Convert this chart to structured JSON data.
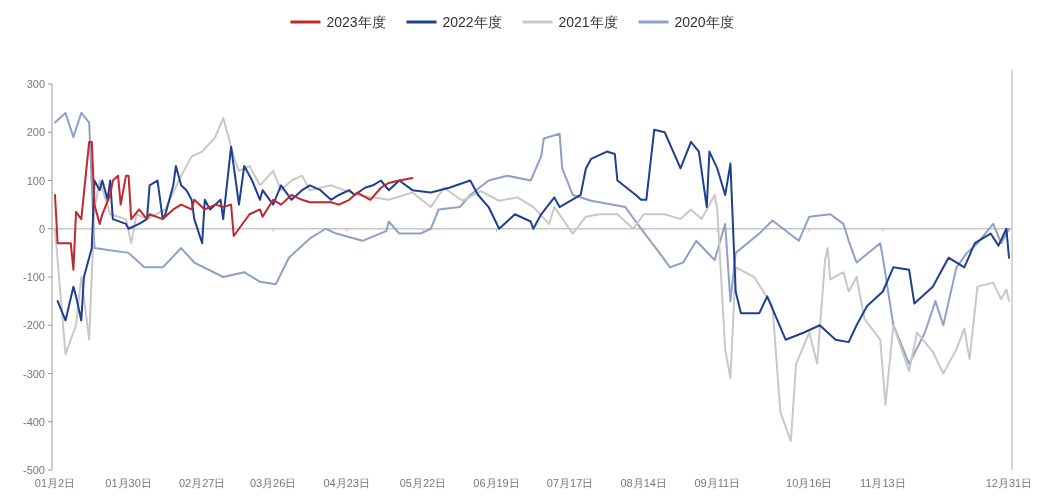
{
  "chart_data": {
    "type": "line",
    "legend": "top",
    "grid": false,
    "marker": "none",
    "line_style": "solid",
    "xlim": [
      "--01-02",
      "--12-31"
    ],
    "xticks": [
      {
        "value": "--01-02",
        "label": "01月2日"
      },
      {
        "value": "--01-30",
        "label": "01月30日"
      },
      {
        "value": "--02-27",
        "label": "02月27日"
      },
      {
        "value": "--03-26",
        "label": "03月26日"
      },
      {
        "value": "--04-23",
        "label": "04月23日"
      },
      {
        "value": "--05-22",
        "label": "05月22日"
      },
      {
        "value": "--06-19",
        "label": "06月19日"
      },
      {
        "value": "--07-17",
        "label": "07月17日"
      },
      {
        "value": "--08-14",
        "label": "08月14日"
      },
      {
        "value": "--09-11",
        "label": "09月11日"
      },
      {
        "value": "--10-16",
        "label": "10月16日"
      },
      {
        "value": "--11-13",
        "label": "11月13日"
      },
      {
        "value": "--12-31",
        "label": "12月31日"
      }
    ],
    "ylim": [
      -500,
      300
    ],
    "yticks": [
      -500,
      -400,
      -300,
      -200,
      -100,
      0,
      100,
      200,
      300
    ],
    "ref_lines": [
      {
        "axis": "y",
        "value": 0,
        "color": "#c8c8c8"
      }
    ],
    "series": [
      {
        "name": "2023年度",
        "color": "#c0282d",
        "x": [
          "--01-02",
          "--01-03",
          "--01-08",
          "--01-09",
          "--01-10",
          "--01-12",
          "--01-15",
          "--01-16",
          "--01-17",
          "--01-19",
          "--01-20",
          "--01-23",
          "--01-24",
          "--01-26",
          "--01-27",
          "--01-29",
          "--01-30",
          "--01-31",
          "--02-03",
          "--02-06",
          "--02-07",
          "--02-12",
          "--02-16",
          "--02-19",
          "--02-23",
          "--02-24",
          "--02-28",
          "--03-04",
          "--03-07",
          "--03-10",
          "--03-11",
          "--03-13",
          "--03-17",
          "--03-21",
          "--03-22",
          "--03-26",
          "--03-29",
          "--04-02",
          "--04-06",
          "--04-09",
          "--04-17",
          "--04-20",
          "--04-24",
          "--04-27",
          "--05-02",
          "--05-06",
          "--05-09",
          "--05-13",
          "--05-18"
        ],
        "values": [
          70,
          -30,
          -30,
          -85,
          35,
          20,
          180,
          180,
          50,
          10,
          30,
          70,
          100,
          110,
          50,
          110,
          110,
          20,
          40,
          20,
          30,
          20,
          40,
          50,
          40,
          60,
          40,
          50,
          45,
          50,
          -15,
          0,
          30,
          40,
          25,
          60,
          50,
          70,
          60,
          55,
          55,
          50,
          60,
          75,
          60,
          85,
          95,
          100,
          105
        ]
      },
      {
        "name": "2022年度",
        "color": "#1f3f8f",
        "x": [
          "--01-03",
          "--01-06",
          "--01-09",
          "--01-10",
          "--01-12",
          "--01-13",
          "--01-15",
          "--01-16",
          "--01-17",
          "--01-19",
          "--01-20",
          "--01-22",
          "--01-23",
          "--01-24",
          "--01-29",
          "--01-30",
          "--02-03",
          "--02-06",
          "--02-07",
          "--02-10",
          "--02-12",
          "--02-13",
          "--02-16",
          "--02-17",
          "--02-19",
          "--02-21",
          "--02-23",
          "--02-24",
          "--02-27",
          "--02-28",
          "--03-02",
          "--03-06",
          "--03-07",
          "--03-10",
          "--03-11",
          "--03-13",
          "--03-15",
          "--03-18",
          "--03-21",
          "--03-22",
          "--03-26",
          "--03-29",
          "--04-02",
          "--04-06",
          "--04-09",
          "--04-13",
          "--04-17",
          "--04-20",
          "--04-24",
          "--04-26",
          "--04-30",
          "--05-03",
          "--05-06",
          "--05-09",
          "--05-13",
          "--05-18",
          "--05-25",
          "--06-01",
          "--06-09",
          "--06-12",
          "--06-16",
          "--06-20",
          "--06-26",
          "--07-02",
          "--07-03",
          "--07-06",
          "--07-11",
          "--07-13",
          "--07-21",
          "--07-23",
          "--07-25",
          "--07-31",
          "--08-03",
          "--08-04",
          "--08-11",
          "--08-13",
          "--08-15",
          "--08-18",
          "--08-22",
          "--08-28",
          "--09-01",
          "--09-04",
          "--09-07",
          "--09-08",
          "--09-11",
          "--09-14",
          "--09-16",
          "--09-18",
          "--09-20",
          "--09-27",
          "--09-30",
          "--10-07",
          "--10-14",
          "--10-20",
          "--10-26",
          "--10-31",
          "--11-03",
          "--11-07",
          "--11-13",
          "--11-17",
          "--11-23",
          "--11-25",
          "--12-02",
          "--12-08",
          "--12-14",
          "--12-18",
          "--12-24",
          "--12-27",
          "--12-30",
          "--12-31"
        ],
        "values": [
          -150,
          -190,
          -120,
          -140,
          -190,
          -100,
          -60,
          -40,
          100,
          80,
          100,
          60,
          100,
          20,
          10,
          0,
          10,
          20,
          90,
          100,
          20,
          30,
          90,
          130,
          90,
          80,
          60,
          20,
          -30,
          60,
          40,
          60,
          20,
          170,
          130,
          50,
          130,
          100,
          60,
          80,
          50,
          90,
          60,
          80,
          90,
          80,
          60,
          70,
          80,
          70,
          85,
          90,
          100,
          80,
          100,
          80,
          75,
          85,
          100,
          70,
          45,
          0,
          30,
          15,
          0,
          30,
          65,
          45,
          70,
          125,
          145,
          160,
          155,
          100,
          70,
          60,
          60,
          205,
          200,
          125,
          180,
          160,
          45,
          160,
          125,
          70,
          135,
          -130,
          -175,
          -175,
          -140,
          -230,
          -215,
          -200,
          -230,
          -235,
          -200,
          -160,
          -130,
          -80,
          -85,
          -155,
          -120,
          -60,
          -80,
          -30,
          -10,
          -35,
          0,
          -60
        ]
      },
      {
        "name": "2021年度",
        "color": "#c8c8c8",
        "x": [
          "--01-02",
          "--01-06",
          "--01-10",
          "--01-12",
          "--01-15",
          "--01-17",
          "--01-19",
          "--01-23",
          "--01-29",
          "--01-31",
          "--02-02",
          "--02-06",
          "--02-13",
          "--02-19",
          "--02-23",
          "--02-27",
          "--03-04",
          "--03-07",
          "--03-11",
          "--03-13",
          "--03-17",
          "--03-21",
          "--03-26",
          "--03-29",
          "--04-02",
          "--04-06",
          "--04-09",
          "--04-17",
          "--04-27",
          "--05-09",
          "--05-18",
          "--05-25",
          "--05-30",
          "--06-06",
          "--06-13",
          "--06-20",
          "--06-27",
          "--07-03",
          "--07-09",
          "--07-11",
          "--07-18",
          "--07-23",
          "--07-28",
          "--08-04",
          "--08-10",
          "--08-14",
          "--08-22",
          "--08-28",
          "--09-01",
          "--09-05",
          "--09-10",
          "--09-11",
          "--09-14",
          "--09-16",
          "--09-18",
          "--09-25",
          "--10-02",
          "--10-05",
          "--10-09",
          "--10-11",
          "--10-16",
          "--10-19",
          "--10-22",
          "--10-23",
          "--10-24",
          "--10-29",
          "--10-31",
          "--11-03",
          "--11-06",
          "--11-12",
          "--11-14",
          "--11-17",
          "--11-23",
          "--11-26",
          "--12-02",
          "--12-06",
          "--12-11",
          "--12-14",
          "--12-16",
          "--12-19",
          "--12-25",
          "--12-28",
          "--12-30",
          "--12-31"
        ],
        "values": [
          0,
          -260,
          -200,
          -100,
          -230,
          40,
          100,
          30,
          20,
          -30,
          30,
          20,
          40,
          110,
          150,
          160,
          190,
          230,
          150,
          120,
          130,
          90,
          120,
          80,
          100,
          110,
          80,
          90,
          70,
          60,
          75,
          45,
          85,
          58,
          78,
          58,
          65,
          45,
          10,
          45,
          -10,
          25,
          30,
          30,
          0,
          30,
          30,
          20,
          40,
          20,
          70,
          40,
          -250,
          -310,
          -80,
          -100,
          -160,
          -380,
          -440,
          -280,
          -215,
          -280,
          -65,
          -40,
          -105,
          -90,
          -130,
          -100,
          -187,
          -230,
          -365,
          -200,
          -295,
          -215,
          -255,
          -300,
          -250,
          -207,
          -270,
          -120,
          -112,
          -146,
          -126,
          -150
        ]
      },
      {
        "name": "2020年度",
        "color": "#8ea0c8",
        "x": [
          "--01-02",
          "--01-06",
          "--01-09",
          "--01-12",
          "--01-15",
          "--01-17",
          "--01-30",
          "--02-05",
          "--02-12",
          "--02-19",
          "--02-24",
          "--03-07",
          "--03-15",
          "--03-21",
          "--03-27",
          "--04-01",
          "--04-09",
          "--04-15",
          "--04-19",
          "--04-29",
          "--05-08",
          "--05-09",
          "--05-13",
          "--05-21",
          "--05-25",
          "--05-28",
          "--06-05",
          "--06-09",
          "--06-16",
          "--06-23",
          "--07-02",
          "--07-06",
          "--07-07",
          "--07-13",
          "--07-14",
          "--07-18",
          "--07-25",
          "--08-07",
          "--08-13",
          "--08-20",
          "--08-24",
          "--08-29",
          "--09-03",
          "--09-10",
          "--09-14",
          "--09-16",
          "--09-18",
          "--09-27",
          "--10-02",
          "--10-12",
          "--10-16",
          "--10-24",
          "--10-29",
          "--10-31",
          "--11-03",
          "--11-12",
          "--11-13",
          "--11-17",
          "--11-23",
          "--11-29",
          "--12-03",
          "--12-06",
          "--12-11",
          "--12-15",
          "--12-19",
          "--12-25",
          "--12-28",
          "--12-31"
        ],
        "values": [
          220,
          240,
          190,
          240,
          220,
          -40,
          -50,
          -80,
          -80,
          -40,
          -70,
          -100,
          -90,
          -110,
          -115,
          -60,
          -20,
          0,
          -10,
          -25,
          -5,
          15,
          -10,
          -10,
          0,
          40,
          45,
          70,
          100,
          110,
          100,
          150,
          187,
          197,
          125,
          70,
          58,
          45,
          0,
          -50,
          -80,
          -70,
          -25,
          -65,
          10,
          -150,
          -50,
          -10,
          17,
          -25,
          25,
          30,
          10,
          -25,
          -70,
          -30,
          -60,
          -200,
          -280,
          -215,
          -150,
          -200,
          -80,
          -50,
          -30,
          10,
          -30,
          0
        ]
      }
    ]
  }
}
